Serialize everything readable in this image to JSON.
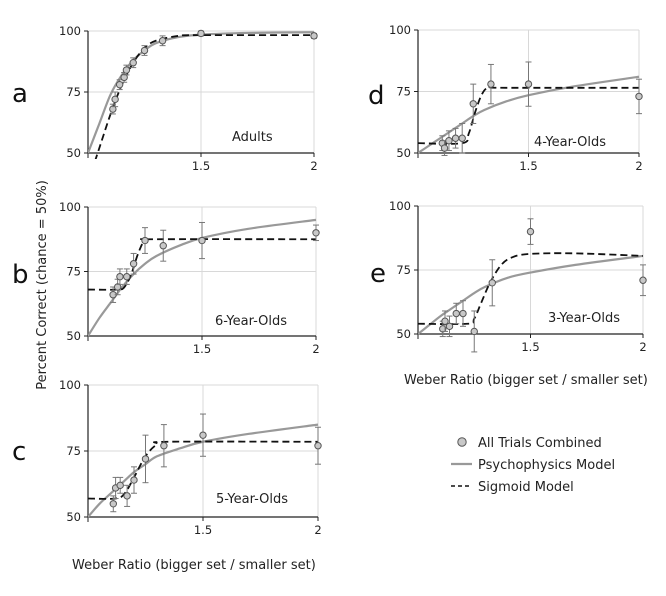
{
  "figure": {
    "ylabel": "Percent Correct (chance = 50%)",
    "xlabel_left": "Weber Ratio (bigger set / smaller set)",
    "xlabel_right": "Weber Ratio (bigger set / smaller set)"
  },
  "legend": {
    "items": [
      {
        "label": "All Trials Combined",
        "kind": "marker"
      },
      {
        "label": "Psychophysics Model",
        "kind": "solid"
      },
      {
        "label": "Sigmoid Model",
        "kind": "dashed"
      }
    ]
  },
  "colors": {
    "marker_fill": "#c8c8c8",
    "marker_stroke": "#555555",
    "psychophysics": "#999999",
    "sigmoid": "#111111",
    "grid": "#d8d8d8",
    "axis": "#222222"
  },
  "chart_data": [
    {
      "panel": "a",
      "type": "scatter",
      "title": "Adults",
      "xlim": [
        1.0,
        2.0
      ],
      "ylim": [
        50,
        100
      ],
      "xticks": [
        1.5,
        2
      ],
      "yticks": [
        50,
        75,
        100
      ],
      "points": [
        {
          "x": 1.11,
          "y": 68,
          "err": 2
        },
        {
          "x": 1.12,
          "y": 72,
          "err": 3
        },
        {
          "x": 1.14,
          "y": 78,
          "err": 2
        },
        {
          "x": 1.16,
          "y": 81,
          "err": 2
        },
        {
          "x": 1.17,
          "y": 84,
          "err": 2
        },
        {
          "x": 1.2,
          "y": 87,
          "err": 2
        },
        {
          "x": 1.25,
          "y": 92,
          "err": 2
        },
        {
          "x": 1.33,
          "y": 96,
          "err": 2
        },
        {
          "x": 1.5,
          "y": 99,
          "err": 1
        },
        {
          "x": 2.0,
          "y": 98,
          "err": 1
        }
      ],
      "psychophysics": [
        [
          1.0,
          50
        ],
        [
          1.05,
          62
        ],
        [
          1.1,
          74
        ],
        [
          1.15,
          82
        ],
        [
          1.2,
          88
        ],
        [
          1.25,
          92
        ],
        [
          1.3,
          95
        ],
        [
          1.4,
          97.5
        ],
        [
          1.5,
          98.5
        ],
        [
          1.7,
          99.2
        ],
        [
          2.0,
          99.5
        ]
      ],
      "sigmoid": [
        [
          1.0,
          38
        ],
        [
          1.05,
          52
        ],
        [
          1.1,
          66
        ],
        [
          1.15,
          78
        ],
        [
          1.2,
          87
        ],
        [
          1.25,
          93
        ],
        [
          1.3,
          96
        ],
        [
          1.4,
          98
        ],
        [
          1.5,
          98.3
        ],
        [
          2.0,
          98.3
        ]
      ]
    },
    {
      "panel": "b",
      "type": "scatter",
      "title": "6-Year-Olds",
      "xlim": [
        1.0,
        2.0
      ],
      "ylim": [
        50,
        100
      ],
      "xticks": [
        1.5,
        2
      ],
      "yticks": [
        50,
        75,
        100
      ],
      "points": [
        {
          "x": 1.11,
          "y": 66,
          "err": 3
        },
        {
          "x": 1.13,
          "y": 69,
          "err": 3
        },
        {
          "x": 1.14,
          "y": 73,
          "err": 3
        },
        {
          "x": 1.17,
          "y": 73,
          "err": 3
        },
        {
          "x": 1.2,
          "y": 78,
          "err": 4
        },
        {
          "x": 1.25,
          "y": 87,
          "err": 5
        },
        {
          "x": 1.33,
          "y": 85,
          "err": 6
        },
        {
          "x": 1.5,
          "y": 87,
          "err": 7
        },
        {
          "x": 2.0,
          "y": 90,
          "err": 3
        }
      ],
      "psychophysics": [
        [
          1.0,
          50
        ],
        [
          1.05,
          57
        ],
        [
          1.1,
          63
        ],
        [
          1.15,
          69
        ],
        [
          1.2,
          74
        ],
        [
          1.25,
          78
        ],
        [
          1.3,
          81
        ],
        [
          1.4,
          85
        ],
        [
          1.5,
          88
        ],
        [
          1.7,
          91.5
        ],
        [
          2.0,
          95
        ]
      ],
      "sigmoid": [
        [
          1.0,
          68
        ],
        [
          1.13,
          68
        ],
        [
          1.16,
          69
        ],
        [
          1.19,
          74
        ],
        [
          1.22,
          82
        ],
        [
          1.25,
          87
        ],
        [
          1.3,
          87.5
        ],
        [
          2.0,
          87.5
        ]
      ]
    },
    {
      "panel": "c",
      "type": "scatter",
      "title": "5-Year-Olds",
      "xlim": [
        1.0,
        2.0
      ],
      "ylim": [
        50,
        100
      ],
      "xticks": [
        1.5,
        2
      ],
      "yticks": [
        50,
        75,
        100
      ],
      "points": [
        {
          "x": 1.11,
          "y": 55,
          "err": 3
        },
        {
          "x": 1.12,
          "y": 61,
          "err": 4
        },
        {
          "x": 1.14,
          "y": 62,
          "err": 3
        },
        {
          "x": 1.17,
          "y": 58,
          "err": 4
        },
        {
          "x": 1.2,
          "y": 64,
          "err": 5
        },
        {
          "x": 1.25,
          "y": 72,
          "err": 9
        },
        {
          "x": 1.33,
          "y": 77,
          "err": 8
        },
        {
          "x": 1.5,
          "y": 81,
          "err": 8
        },
        {
          "x": 2.0,
          "y": 77,
          "err": 7
        }
      ],
      "psychophysics": [
        [
          1.0,
          50
        ],
        [
          1.05,
          55
        ],
        [
          1.1,
          59
        ],
        [
          1.15,
          63
        ],
        [
          1.2,
          67
        ],
        [
          1.25,
          70
        ],
        [
          1.3,
          73
        ],
        [
          1.4,
          76
        ],
        [
          1.5,
          78.5
        ],
        [
          1.7,
          81.5
        ],
        [
          2.0,
          85
        ]
      ],
      "sigmoid": [
        [
          1.0,
          57
        ],
        [
          1.12,
          57
        ],
        [
          1.16,
          59
        ],
        [
          1.2,
          65
        ],
        [
          1.25,
          73
        ],
        [
          1.3,
          77.5
        ],
        [
          1.35,
          78.5
        ],
        [
          2.0,
          78.5
        ]
      ]
    },
    {
      "panel": "d",
      "type": "scatter",
      "title": "4-Year-Olds",
      "xlim": [
        1.0,
        2.0
      ],
      "ylim": [
        50,
        100
      ],
      "xticks": [
        1.5,
        2
      ],
      "yticks": [
        50,
        75,
        100
      ],
      "points": [
        {
          "x": 1.11,
          "y": 54,
          "err": 3
        },
        {
          "x": 1.12,
          "y": 52,
          "err": 3
        },
        {
          "x": 1.14,
          "y": 55,
          "err": 4
        },
        {
          "x": 1.17,
          "y": 56,
          "err": 4
        },
        {
          "x": 1.2,
          "y": 56,
          "err": 6
        },
        {
          "x": 1.25,
          "y": 70,
          "err": 8
        },
        {
          "x": 1.33,
          "y": 78,
          "err": 8
        },
        {
          "x": 1.5,
          "y": 78,
          "err": 9
        },
        {
          "x": 2.0,
          "y": 73,
          "err": 7
        }
      ],
      "psychophysics": [
        [
          1.0,
          50
        ],
        [
          1.05,
          53
        ],
        [
          1.1,
          56
        ],
        [
          1.15,
          59
        ],
        [
          1.2,
          62
        ],
        [
          1.25,
          65
        ],
        [
          1.3,
          67.5
        ],
        [
          1.4,
          71
        ],
        [
          1.5,
          73.5
        ],
        [
          1.7,
          77
        ],
        [
          2.0,
          81
        ]
      ],
      "sigmoid": [
        [
          1.0,
          54
        ],
        [
          1.2,
          54
        ],
        [
          1.23,
          58
        ],
        [
          1.26,
          67
        ],
        [
          1.29,
          74
        ],
        [
          1.32,
          76.5
        ],
        [
          1.4,
          76.5
        ],
        [
          2.0,
          76.5
        ]
      ]
    },
    {
      "panel": "e",
      "type": "scatter",
      "title": "3-Year-Olds",
      "xlim": [
        1.0,
        2.0
      ],
      "ylim": [
        50,
        100
      ],
      "xticks": [
        1.5,
        2
      ],
      "yticks": [
        50,
        75,
        100
      ],
      "points": [
        {
          "x": 1.11,
          "y": 52,
          "err": 3
        },
        {
          "x": 1.12,
          "y": 55,
          "err": 4
        },
        {
          "x": 1.14,
          "y": 53,
          "err": 4
        },
        {
          "x": 1.17,
          "y": 58,
          "err": 4
        },
        {
          "x": 1.2,
          "y": 58,
          "err": 5
        },
        {
          "x": 1.25,
          "y": 51,
          "err": 8
        },
        {
          "x": 1.33,
          "y": 70,
          "err": 9
        },
        {
          "x": 1.5,
          "y": 90,
          "err": 5
        },
        {
          "x": 2.0,
          "y": 71,
          "err": 6
        }
      ],
      "psychophysics": [
        [
          1.0,
          50
        ],
        [
          1.05,
          53.5
        ],
        [
          1.1,
          57
        ],
        [
          1.15,
          60
        ],
        [
          1.2,
          63
        ],
        [
          1.25,
          66
        ],
        [
          1.3,
          68.5
        ],
        [
          1.4,
          72
        ],
        [
          1.5,
          74
        ],
        [
          1.7,
          77
        ],
        [
          2.0,
          80.5
        ]
      ],
      "sigmoid": [
        [
          1.0,
          54
        ],
        [
          1.22,
          54
        ],
        [
          1.25,
          56
        ],
        [
          1.28,
          62
        ],
        [
          1.32,
          70
        ],
        [
          1.37,
          77
        ],
        [
          1.42,
          80
        ],
        [
          1.5,
          81.3
        ],
        [
          1.7,
          81.5
        ],
        [
          2.0,
          80.5
        ]
      ]
    }
  ]
}
